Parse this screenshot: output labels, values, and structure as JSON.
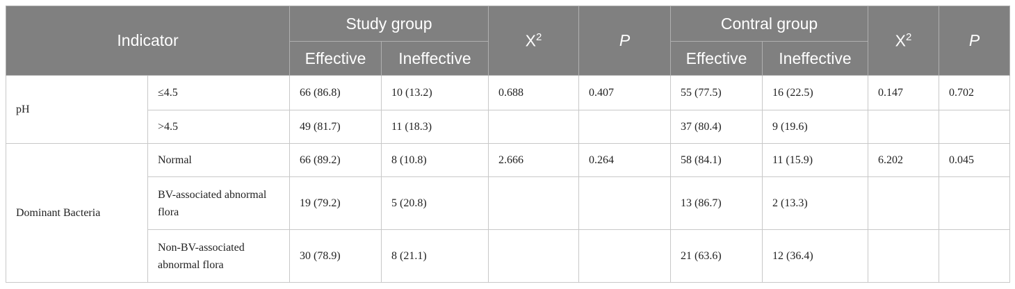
{
  "header": {
    "indicator": "Indicator",
    "study_group": "Study group",
    "control_group": "Contral group",
    "chi": {
      "text": "X",
      "sup": "2"
    },
    "p": "P",
    "effective": "Effective",
    "ineffective": "Ineffective"
  },
  "groups": [
    {
      "label": "pH",
      "stats": {
        "study_chi": "0.688",
        "study_p": "0.407",
        "control_chi": "0.147",
        "control_p": "0.702"
      },
      "rows": [
        {
          "label": "≤4.5",
          "study": [
            "66 (86.8)",
            "10 (13.2)"
          ],
          "control": [
            "55 (77.5)",
            "16 (22.5)"
          ]
        },
        {
          "label": ">4.5",
          "study": [
            "49 (81.7)",
            "11 (18.3)"
          ],
          "control": [
            "37 (80.4)",
            "9 (19.6)"
          ]
        }
      ]
    },
    {
      "label": "Dominant Bacteria",
      "stats": {
        "study_chi": "2.666",
        "study_p": "0.264",
        "control_chi": "6.202",
        "control_p": "0.045"
      },
      "rows": [
        {
          "label": "Normal",
          "study": [
            "66 (89.2)",
            "8 (10.8)"
          ],
          "control": [
            "58 (84.1)",
            "11 (15.9)"
          ]
        },
        {
          "label": "BV-associated abnormal flora",
          "study": [
            "19 (79.2)",
            "5 (20.8)"
          ],
          "control": [
            "13 (86.7)",
            "2 (13.3)"
          ]
        },
        {
          "label": "Non-BV-associated abnormal flora",
          "study": [
            "30 (78.9)",
            "8 (21.1)"
          ],
          "control": [
            "21 (63.6)",
            "12 (36.4)"
          ]
        }
      ]
    }
  ]
}
